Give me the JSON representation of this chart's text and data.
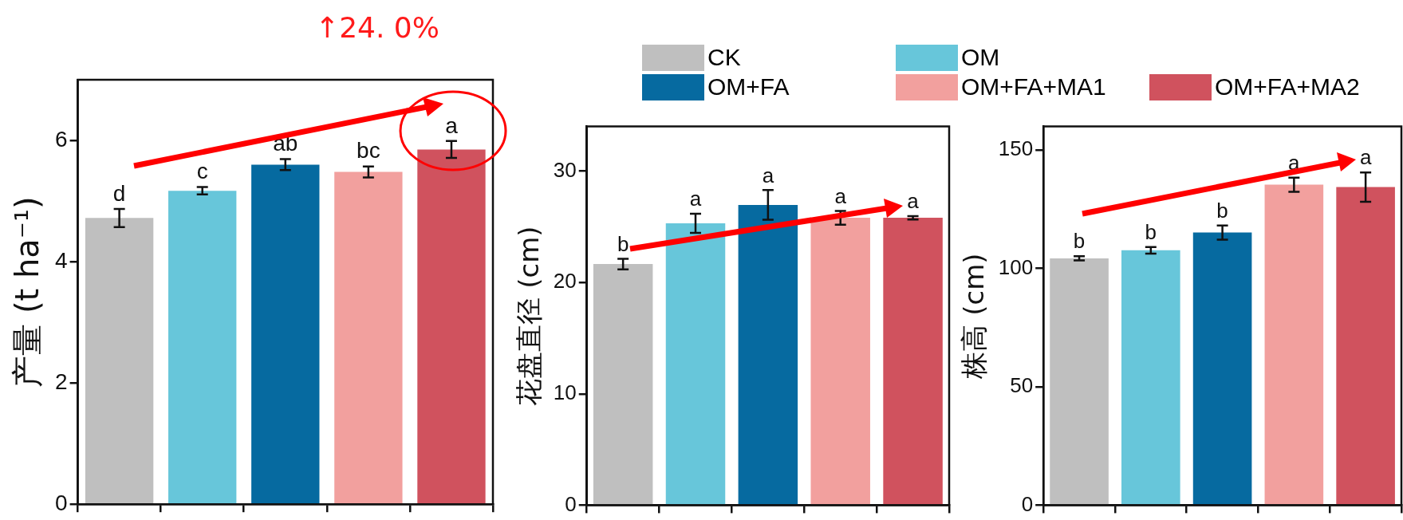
{
  "chart_data": [
    {
      "type": "bar",
      "ylabel": "产量 (t ha⁻¹)",
      "categories": [
        null,
        null,
        null,
        null,
        null
      ],
      "tick_labels": "y",
      "ylim": [
        0,
        7
      ],
      "yticks": [
        0,
        2,
        4,
        6
      ],
      "annotations": [
        "↑24. 0%"
      ],
      "series": [
        {
          "color": "#bfbfbf",
          "values": [
            4.72,
            null,
            null,
            null,
            null
          ],
          "errors": [
            0.15,
            null,
            null,
            null,
            null
          ],
          "value_labels": [
            "d",
            null,
            null,
            null,
            null
          ]
        },
        {
          "color": "#67c6da",
          "values": [
            null,
            5.17,
            null,
            null,
            null
          ],
          "errors": [
            null,
            0.06,
            null,
            null,
            null
          ],
          "value_labels": [
            null,
            "c",
            null,
            null,
            null
          ]
        },
        {
          "color": "#066aa0",
          "values": [
            null,
            null,
            5.6,
            null,
            null
          ],
          "errors": [
            null,
            null,
            0.09,
            null,
            null
          ],
          "value_labels": [
            null,
            null,
            "ab",
            null,
            null
          ]
        },
        {
          "color": "#f2a09e",
          "values": [
            null,
            null,
            null,
            5.48,
            null
          ],
          "errors": [
            null,
            null,
            null,
            0.09,
            null
          ],
          "value_labels": [
            null,
            null,
            null,
            "bc",
            null
          ]
        },
        {
          "color": "#d0525e",
          "values": [
            null,
            null,
            null,
            null,
            5.85
          ],
          "errors": [
            null,
            null,
            null,
            null,
            0.14
          ],
          "value_labels": [
            null,
            null,
            null,
            null,
            "a"
          ]
        }
      ]
    },
    {
      "type": "bar",
      "ylabel": "花盘直径 (cm)",
      "categories": [
        null,
        null,
        null,
        null,
        null
      ],
      "tick_labels": "y",
      "ylim": [
        0,
        34
      ],
      "yticks": [
        0,
        10,
        20,
        30
      ],
      "legend": "top",
      "series": [
        {
          "name": "CK",
          "color": "#bfbfbf",
          "values": [
            21.65,
            null,
            null,
            null,
            null
          ],
          "errors": [
            0.47,
            null,
            null,
            null,
            null
          ],
          "value_labels": [
            "b",
            null,
            null,
            null,
            null
          ]
        },
        {
          "name": "OM",
          "color": "#67c6da",
          "values": [
            null,
            25.3,
            null,
            null,
            null
          ],
          "errors": [
            null,
            0.86,
            null,
            null,
            null
          ],
          "value_labels": [
            null,
            "a",
            null,
            null,
            null
          ]
        },
        {
          "name": "OM+FA",
          "color": "#066aa0",
          "values": [
            null,
            null,
            26.96,
            null,
            null
          ],
          "errors": [
            null,
            null,
            1.33,
            null,
            null
          ],
          "value_labels": [
            null,
            null,
            "a",
            null,
            null
          ]
        },
        {
          "name": "OM+FA+MA1",
          "color": "#f2a09e",
          "values": [
            null,
            null,
            null,
            25.8,
            null
          ],
          "errors": [
            null,
            null,
            null,
            0.62,
            null
          ],
          "value_labels": [
            null,
            null,
            null,
            "a",
            null
          ]
        },
        {
          "name": "OM+FA+MA2",
          "color": "#d0525e",
          "values": [
            null,
            null,
            null,
            null,
            25.8
          ],
          "errors": [
            null,
            null,
            null,
            null,
            0.15
          ],
          "value_labels": [
            null,
            null,
            null,
            null,
            "a"
          ]
        }
      ]
    },
    {
      "type": "bar",
      "ylabel": "株高 (cm)",
      "categories": [
        null,
        null,
        null,
        null,
        null
      ],
      "tick_labels": "y",
      "ylim": [
        0,
        160
      ],
      "yticks": [
        0,
        50,
        100,
        150
      ],
      "series": [
        {
          "color": "#bfbfbf",
          "values": [
            104.3,
            null,
            null,
            null,
            null
          ],
          "errors": [
            0.9,
            null,
            null,
            null,
            null
          ],
          "value_labels": [
            "b",
            null,
            null,
            null,
            null
          ]
        },
        {
          "color": "#67c6da",
          "values": [
            null,
            107.7,
            null,
            null,
            null
          ],
          "errors": [
            null,
            1.4,
            null,
            null,
            null
          ],
          "value_labels": [
            null,
            "b",
            null,
            null,
            null
          ]
        },
        {
          "color": "#066aa0",
          "values": [
            null,
            null,
            115.2,
            null,
            null
          ],
          "errors": [
            null,
            null,
            3.0,
            null,
            null
          ],
          "value_labels": [
            null,
            null,
            "b",
            null,
            null
          ]
        },
        {
          "color": "#f2a09e",
          "values": [
            null,
            null,
            null,
            135.4,
            null
          ],
          "errors": [
            null,
            null,
            null,
            3.0,
            null
          ],
          "value_labels": [
            null,
            null,
            null,
            "a",
            null
          ]
        },
        {
          "color": "#d0525e",
          "values": [
            null,
            null,
            null,
            null,
            134.4
          ],
          "errors": [
            null,
            null,
            null,
            null,
            6.2
          ],
          "value_labels": [
            null,
            null,
            null,
            null,
            "a"
          ]
        }
      ]
    }
  ]
}
